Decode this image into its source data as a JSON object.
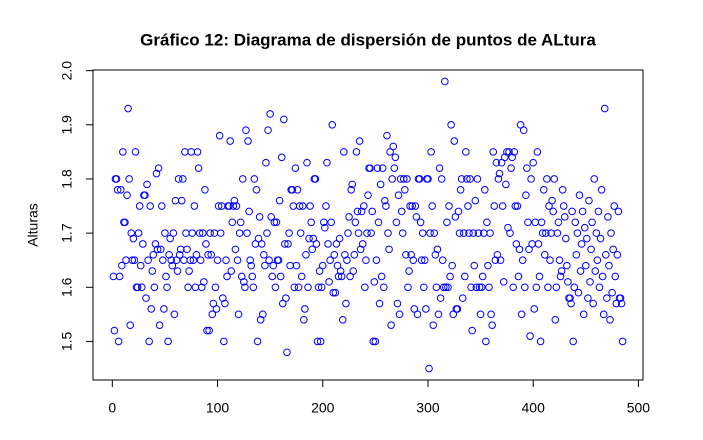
{
  "chart_data": {
    "type": "scatter",
    "title": "Gráfico 12: Diagrama de dispersión de puntos de ALtura",
    "y_label": "Alturas",
    "color": "#0000ff",
    "values": [
      1.62,
      1.52,
      1.8,
      1.8,
      1.78,
      1.5,
      1.62,
      1.78,
      1.64,
      1.85,
      1.72,
      1.72,
      1.65,
      1.77,
      1.93,
      1.8,
      1.53,
      1.7,
      1.65,
      1.69,
      1.65,
      1.85,
      1.6,
      1.6,
      1.7,
      1.75,
      1.64,
      1.6,
      1.68,
      1.77,
      1.77,
      1.58,
      1.79,
      1.65,
      1.5,
      1.75,
      1.56,
      1.63,
      1.66,
      1.6,
      1.68,
      1.81,
      1.67,
      1.82,
      1.53,
      1.67,
      1.75,
      1.65,
      1.56,
      1.7,
      1.62,
      1.6,
      1.5,
      1.66,
      1.69,
      1.65,
      1.64,
      1.7,
      1.55,
      1.76,
      1.65,
      1.63,
      1.8,
      1.66,
      1.67,
      1.76,
      1.8,
      1.65,
      1.85,
      1.7,
      1.67,
      1.6,
      1.63,
      1.65,
      1.85,
      1.7,
      1.65,
      1.75,
      1.6,
      1.66,
      1.85,
      1.82,
      1.7,
      1.65,
      1.6,
      1.7,
      1.61,
      1.78,
      1.68,
      1.52,
      1.66,
      1.52,
      1.7,
      1.66,
      1.55,
      1.57,
      1.7,
      1.6,
      1.56,
      1.65,
      1.75,
      1.88,
      1.7,
      1.75,
      1.58,
      1.5,
      1.57,
      1.65,
      1.62,
      1.75,
      1.75,
      1.87,
      1.63,
      1.72,
      1.75,
      1.76,
      1.67,
      1.75,
      1.65,
      1.55,
      1.7,
      1.72,
      1.62,
      1.8,
      1.61,
      1.6,
      1.89,
      1.7,
      1.87,
      1.74,
      1.65,
      1.64,
      1.62,
      1.6,
      1.8,
      1.68,
      1.78,
      1.5,
      1.69,
      1.73,
      1.54,
      1.68,
      1.55,
      1.66,
      1.64,
      1.83,
      1.7,
      1.89,
      1.65,
      1.92,
      1.73,
      1.62,
      1.64,
      1.72,
      1.6,
      1.72,
      1.65,
      1.65,
      1.76,
      1.62,
      1.84,
      1.57,
      1.91,
      1.68,
      1.58,
      1.48,
      1.68,
      1.7,
      1.64,
      1.78,
      1.78,
      1.75,
      1.6,
      1.82,
      1.64,
      1.78,
      1.6,
      1.75,
      1.7,
      1.62,
      1.75,
      1.54,
      1.56,
      1.66,
      1.83,
      1.6,
      1.69,
      1.75,
      1.72,
      1.67,
      1.69,
      1.8,
      1.8,
      1.68,
      1.5,
      1.6,
      1.63,
      1.5,
      1.6,
      1.64,
      1.72,
      1.71,
      1.75,
      1.83,
      1.68,
      1.61,
      1.65,
      1.72,
      1.9,
      1.59,
      1.66,
      1.59,
      1.68,
      1.64,
      1.62,
      1.69,
      1.63,
      1.62,
      1.54,
      1.85,
      1.66,
      1.57,
      1.65,
      1.7,
      1.73,
      1.62,
      1.78,
      1.79,
      1.63,
      1.66,
      1.72,
      1.85,
      1.74,
      1.7,
      1.87,
      1.67,
      1.74,
      1.68,
      1.75,
      1.6,
      1.65,
      1.7,
      1.77,
      1.82,
      1.82,
      1.7,
      1.74,
      1.5,
      1.61,
      1.5,
      1.65,
      1.82,
      1.72,
      1.57,
      1.79,
      1.62,
      1.82,
      1.6,
      1.76,
      1.75,
      1.88,
      1.7,
      1.67,
      1.85,
      1.53,
      1.8,
      1.86,
      1.82,
      1.84,
      1.72,
      1.57,
      1.77,
      1.55,
      1.8,
      1.74,
      1.7,
      1.8,
      1.78,
      1.66,
      1.8,
      1.6,
      1.63,
      1.75,
      1.66,
      1.75,
      1.65,
      1.56,
      1.75,
      1.73,
      1.55,
      1.8,
      1.8,
      1.72,
      1.65,
      1.7,
      1.6,
      1.65,
      1.56,
      1.8,
      1.8,
      1.45,
      1.7,
      1.85,
      1.75,
      1.53,
      1.7,
      1.66,
      1.6,
      1.67,
      1.55,
      1.82,
      1.58,
      1.8,
      1.65,
      1.6,
      1.98,
      1.6,
      1.72,
      1.6,
      1.75,
      1.62,
      1.9,
      1.64,
      1.55,
      1.87,
      1.73,
      1.56,
      1.56,
      1.74,
      1.7,
      1.78,
      1.8,
      1.58,
      1.7,
      1.62,
      1.85,
      1.8,
      1.75,
      1.7,
      1.8,
      1.6,
      1.52,
      1.7,
      1.64,
      1.76,
      1.6,
      1.8,
      1.7,
      1.6,
      1.55,
      1.6,
      1.62,
      1.7,
      1.78,
      1.5,
      1.72,
      1.64,
      1.6,
      1.7,
      1.55,
      1.53,
      1.85,
      1.75,
      1.65,
      1.83,
      1.66,
      1.8,
      1.81,
      1.65,
      1.83,
      1.75,
      1.61,
      1.84,
      1.79,
      1.85,
      1.71,
      1.85,
      1.7,
      1.82,
      1.84,
      1.6,
      1.85,
      1.75,
      1.68,
      1.75,
      1.62,
      1.67,
      1.9,
      1.55,
      1.65,
      1.89,
      1.6,
      1.77,
      1.82,
      1.72,
      1.67,
      1.51,
      1.8,
      1.68,
      1.83,
      1.56,
      1.72,
      1.6,
      1.85,
      1.68,
      1.62,
      1.5,
      1.72,
      1.7,
      1.78,
      1.66,
      1.7,
      1.8,
      1.6,
      1.75,
      1.65,
      1.7,
      1.76,
      1.74,
      1.8,
      1.54,
      1.6,
      1.7,
      1.72,
      1.65,
      1.62,
      1.63,
      1.78,
      1.75,
      1.73,
      1.69,
      1.64,
      1.61,
      1.58,
      1.58,
      1.57,
      1.74,
      1.5,
      1.6,
      1.72,
      1.66,
      1.7,
      1.59,
      1.77,
      1.63,
      1.68,
      1.74,
      1.55,
      1.71,
      1.64,
      1.69,
      1.58,
      1.76,
      1.61,
      1.67,
      1.72,
      1.57,
      1.8,
      1.63,
      1.7,
      1.65,
      1.74,
      1.6,
      1.69,
      1.78,
      1.62,
      1.55,
      1.93,
      1.66,
      1.58,
      1.73,
      1.64,
      1.54,
      1.7,
      1.59,
      1.67,
      1.75,
      1.62,
      1.57,
      1.66,
      1.74,
      1.58,
      1.58,
      1.57,
      1.5
    ],
    "xlim": [
      -18.36,
      504.36
    ],
    "ylim": [
      1.4288,
      2.0012
    ],
    "xticks": [
      0,
      100,
      200,
      300,
      400,
      500
    ],
    "yticks": [
      1.5,
      1.6,
      1.7,
      1.8,
      1.9,
      {
        "value": 2,
        "label": "2.0"
      }
    ]
  }
}
